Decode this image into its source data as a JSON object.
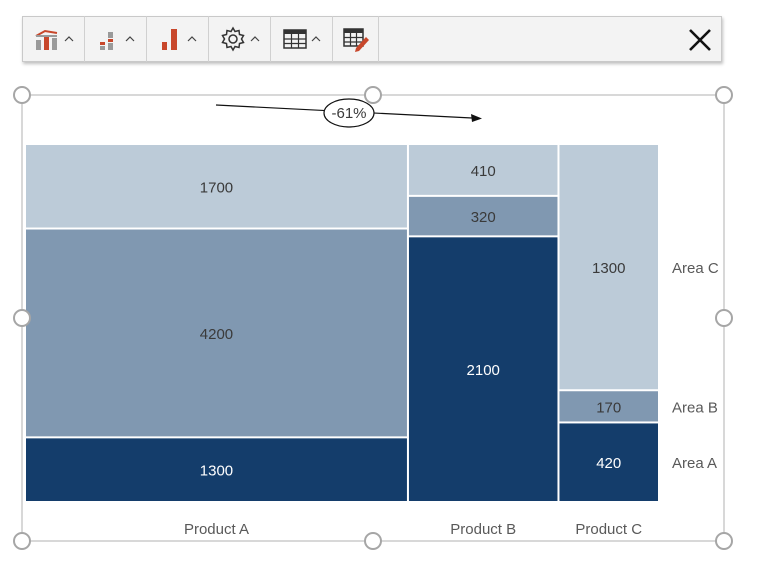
{
  "toolbar": {
    "buttons": [
      {
        "icon": "chart-layout-icon"
      },
      {
        "icon": "stacked-column-icon"
      },
      {
        "icon": "bar-chart-icon"
      },
      {
        "icon": "gear-icon"
      },
      {
        "icon": "table-icon"
      },
      {
        "icon": "edit-table-icon"
      }
    ],
    "close_icon": "close-icon"
  },
  "annotation": {
    "label": "-61%"
  },
  "colors": {
    "area_a": "#143d6b",
    "area_b": "#8098b1",
    "area_c": "#bccbd8",
    "text_dark": "#3a3a3a",
    "text_light": "#ffffff",
    "handle": "#a6a6a6",
    "accent_red": "#c8472b"
  },
  "chart_data": {
    "type": "marimekko",
    "categories": [
      "Product A",
      "Product B",
      "Product C"
    ],
    "series": [
      {
        "name": "Area A",
        "values": [
          1300,
          2100,
          420
        ]
      },
      {
        "name": "Area B",
        "values": [
          4200,
          320,
          170
        ]
      },
      {
        "name": "Area C",
        "values": [
          1700,
          410,
          1300
        ]
      }
    ],
    "legend_placement": "right",
    "grid": false
  }
}
